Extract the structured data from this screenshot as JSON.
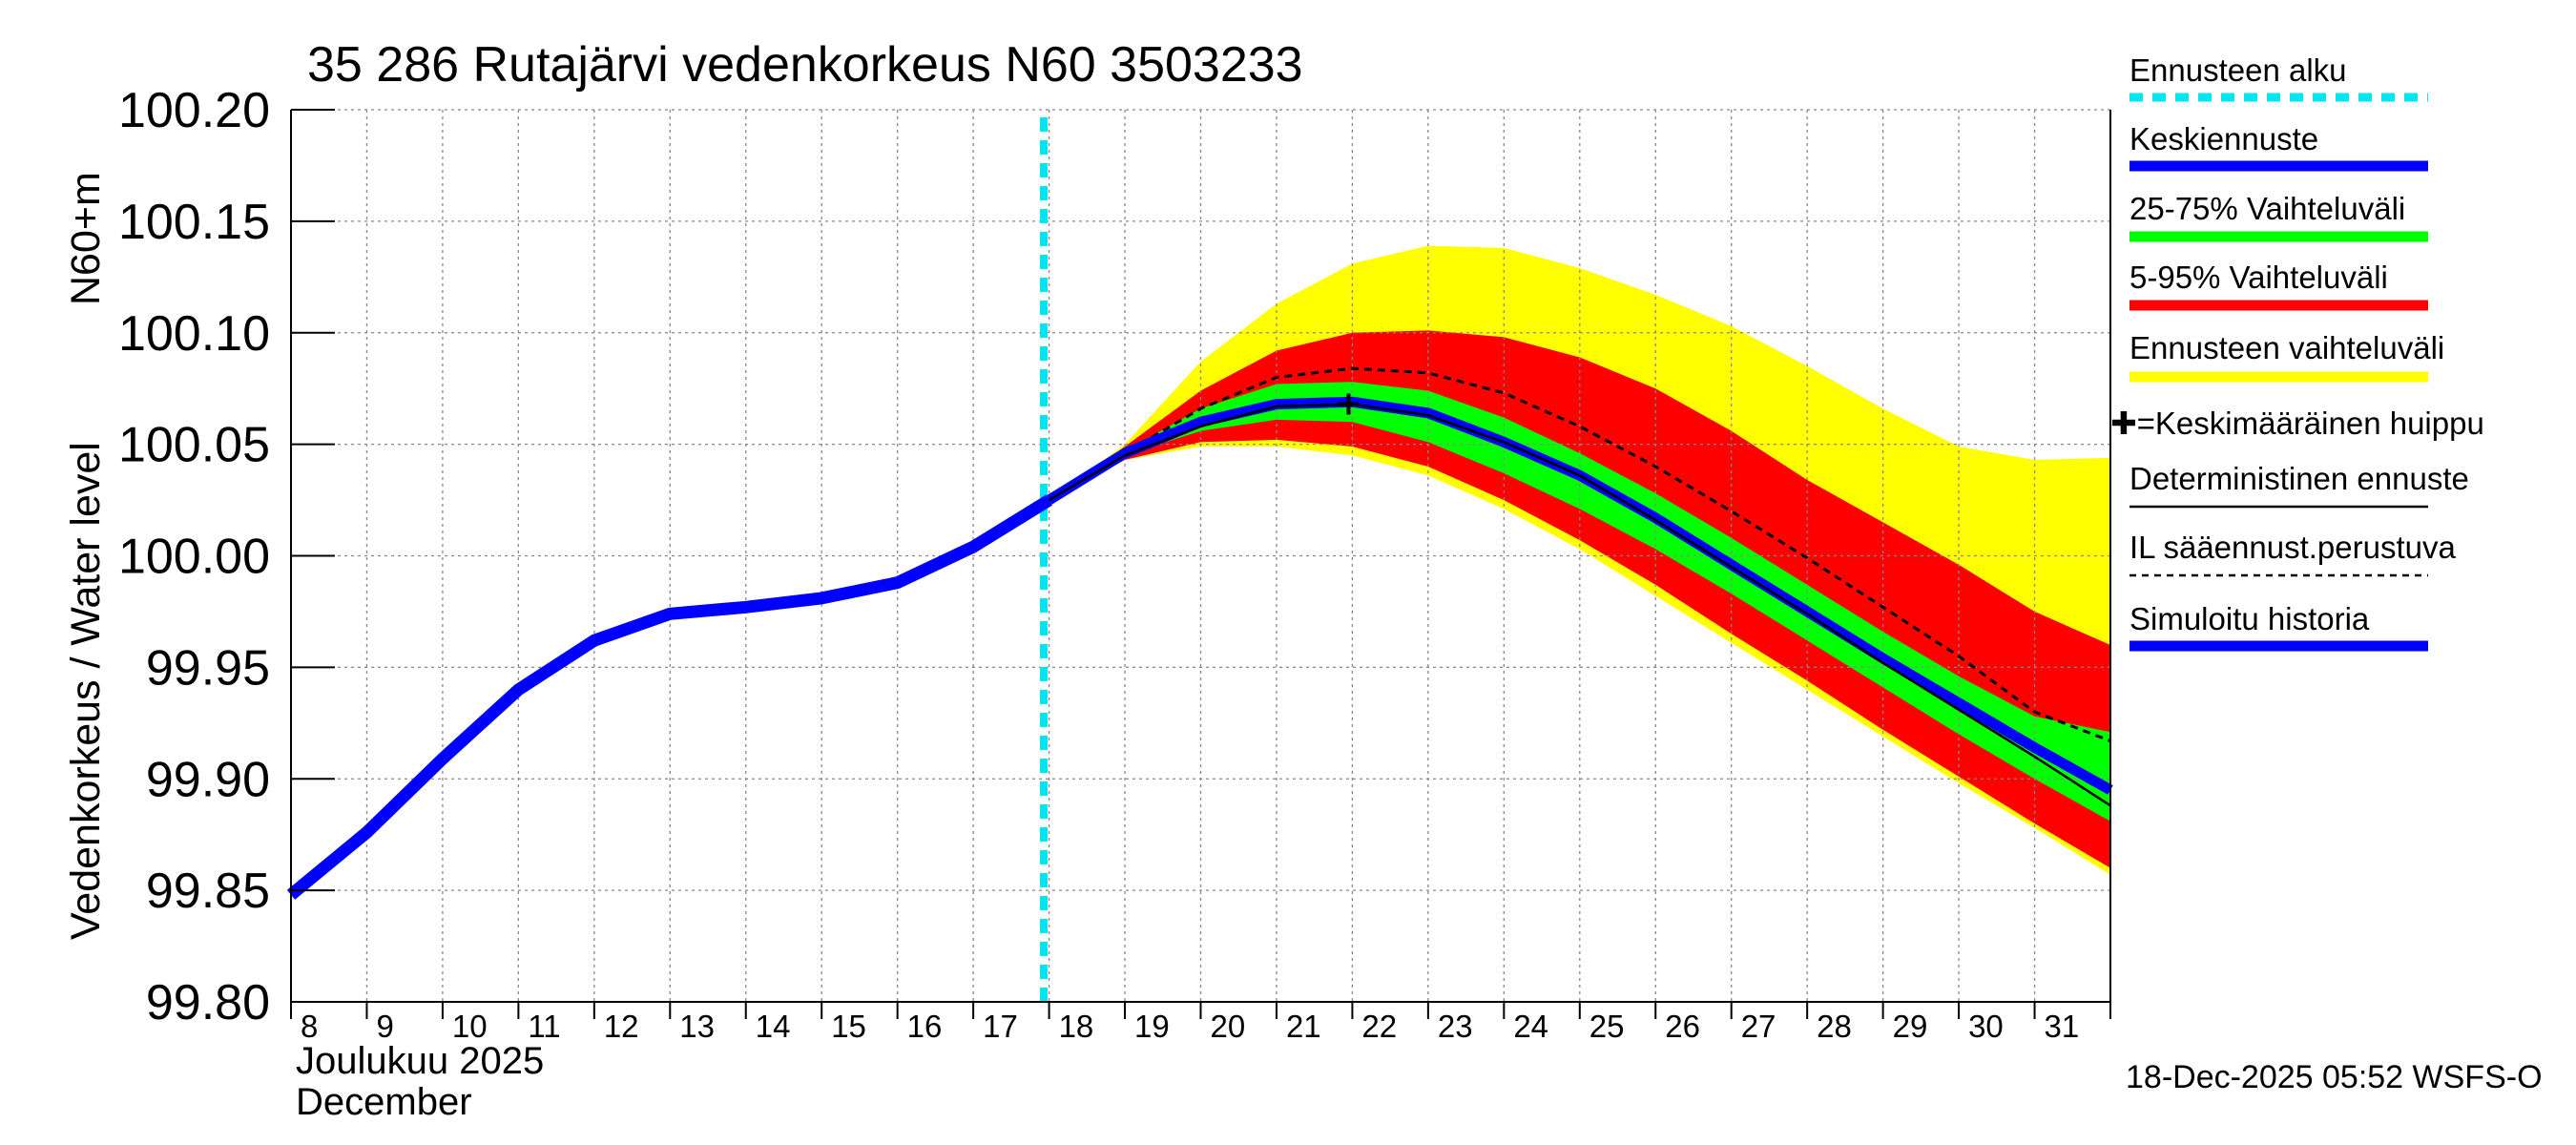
{
  "chart_data": {
    "type": "area",
    "title": "35 286 Rutajärvi vedenkorkeus N60 3503233",
    "ylabel_line1": "N60+m",
    "ylabel_line2": "Vedenkorkeus / Water level",
    "xlabel_line1": "Joulukuu  2025",
    "xlabel_line2": "December",
    "footer": "18-Dec-2025 05:52 WSFS-O",
    "x_range": [
      8,
      32
    ],
    "ylim": [
      99.8,
      100.2
    ],
    "y_ticks": [
      99.8,
      99.85,
      99.9,
      99.95,
      100.0,
      100.05,
      100.1,
      100.15,
      100.2
    ],
    "y_tick_labels": [
      "99.80",
      "99.85",
      "99.90",
      "99.95",
      "100.00",
      "100.05",
      "100.10",
      "100.15",
      "100.20"
    ],
    "x_ticks": [
      8,
      9,
      10,
      11,
      12,
      13,
      14,
      15,
      16,
      17,
      18,
      19,
      20,
      21,
      22,
      23,
      24,
      25,
      26,
      27,
      28,
      29,
      30,
      31
    ],
    "x_tick_labels": [
      "8",
      "9",
      "10",
      "11",
      "12",
      "13",
      "14",
      "15",
      "16",
      "17",
      "18",
      "19",
      "20",
      "21",
      "22",
      "23",
      "24",
      "25",
      "26",
      "27",
      "28",
      "29",
      "30",
      "31"
    ],
    "forecast_start_x": 17.93,
    "history": {
      "x": [
        8,
        9,
        10,
        11,
        12,
        13,
        14,
        15,
        16,
        17,
        18
      ],
      "y": [
        99.848,
        99.876,
        99.909,
        99.94,
        99.962,
        99.974,
        99.977,
        99.981,
        99.988,
        100.004,
        100.025
      ]
    },
    "forecast_x": [
      18,
      19,
      20,
      21,
      22,
      23,
      24,
      25,
      26,
      27,
      28,
      29,
      30,
      31,
      32
    ],
    "band_ensemble": {
      "upper": [
        100.025,
        100.05,
        100.087,
        100.113,
        100.131,
        100.139,
        100.138,
        100.129,
        100.117,
        100.103,
        100.085,
        100.066,
        100.049,
        100.043,
        100.044
      ],
      "lower": [
        100.025,
        100.043,
        100.049,
        100.049,
        100.045,
        100.036,
        100.021,
        100.003,
        99.982,
        99.961,
        99.94,
        99.919,
        99.898,
        99.878,
        99.857
      ]
    },
    "band_5_95": {
      "upper": [
        100.025,
        100.049,
        100.074,
        100.092,
        100.1,
        100.101,
        100.098,
        100.089,
        100.075,
        100.056,
        100.034,
        100.015,
        99.996,
        99.975,
        99.96
      ],
      "lower": [
        100.025,
        100.043,
        100.051,
        100.052,
        100.049,
        100.04,
        100.025,
        100.007,
        99.987,
        99.965,
        99.944,
        99.922,
        99.901,
        99.88,
        99.86
      ]
    },
    "band_25_75": {
      "upper": [
        100.025,
        100.047,
        100.066,
        100.077,
        100.078,
        100.074,
        100.062,
        100.046,
        100.028,
        100.008,
        99.987,
        99.966,
        99.946,
        99.928,
        99.921
      ],
      "lower": [
        100.025,
        100.045,
        100.056,
        100.061,
        100.06,
        100.051,
        100.037,
        100.021,
        100.003,
        99.983,
        99.962,
        99.941,
        99.92,
        99.9,
        99.881
      ]
    },
    "mean_forecast": [
      100.025,
      100.046,
      100.06,
      100.068,
      100.069,
      100.064,
      100.051,
      100.036,
      100.017,
      99.996,
      99.975,
      99.954,
      99.934,
      99.914,
      99.895
    ],
    "deterministic": [
      100.025,
      100.045,
      100.058,
      100.067,
      100.068,
      100.063,
      100.051,
      100.036,
      100.016,
      99.995,
      99.974,
      99.952,
      99.931,
      99.91,
      99.888
    ],
    "il_forecast": [
      100.025,
      100.046,
      100.066,
      100.08,
      100.084,
      100.082,
      100.073,
      100.058,
      100.04,
      100.02,
      99.999,
      99.977,
      99.955,
      99.93,
      99.917
    ],
    "mean_peak": {
      "x": 21.95,
      "y": 100.068
    },
    "colors": {
      "history": "#0000ff",
      "mean": "#0000ff",
      "band_25_75": "#00ff00",
      "band_5_95": "#ff0000",
      "band_ensemble": "#ffff00",
      "forecast_start": "#00e5ee",
      "deterministic": "#000000",
      "il": "#000000"
    },
    "legend": [
      {
        "label": "Ennusteen alku",
        "style": "dotted-cyan"
      },
      {
        "label": "Keskiennuste",
        "style": "blue"
      },
      {
        "label": "25-75% Vaihteluväli",
        "style": "green"
      },
      {
        "label": "5-95% Vaihteluväli",
        "style": "red"
      },
      {
        "label": "Ennusteen vaihteluväli",
        "style": "yellow"
      },
      {
        "label": "✚=Keskimääräinen huippu",
        "style": "none"
      },
      {
        "label": "Deterministinen ennuste",
        "style": "thin-black"
      },
      {
        "label": "IL sääennust.perustuva",
        "style": "dashed-black"
      },
      {
        "label": "Simuloitu historia",
        "style": "blue"
      }
    ]
  }
}
